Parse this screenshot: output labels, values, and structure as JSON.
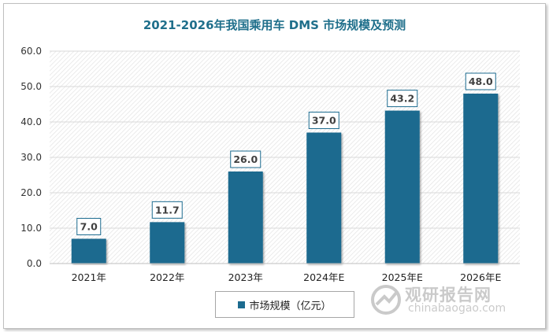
{
  "chart_data": {
    "type": "bar",
    "title": "2021-2026年我国乘用车 DMS 市场规模及预测",
    "categories": [
      "2021年",
      "2022年",
      "2023年",
      "2024年E",
      "2025年E",
      "2026年E"
    ],
    "series": [
      {
        "name": "市场规模（亿元）",
        "values": [
          7.0,
          11.7,
          26.0,
          37.0,
          43.2,
          48.0
        ]
      }
    ],
    "data_labels": [
      "7.0",
      "11.7",
      "26.0",
      "37.0",
      "43.2",
      "48.0"
    ],
    "y_ticks": [
      "0.0",
      "10.0",
      "20.0",
      "30.0",
      "40.0",
      "50.0",
      "60.0"
    ],
    "ylim": [
      0,
      60
    ],
    "grid": true,
    "legend_position": "bottom",
    "bar_color": "#1c6b8f"
  },
  "watermark": {
    "cn": "观研报告网",
    "en": "chinabaogao.com"
  }
}
